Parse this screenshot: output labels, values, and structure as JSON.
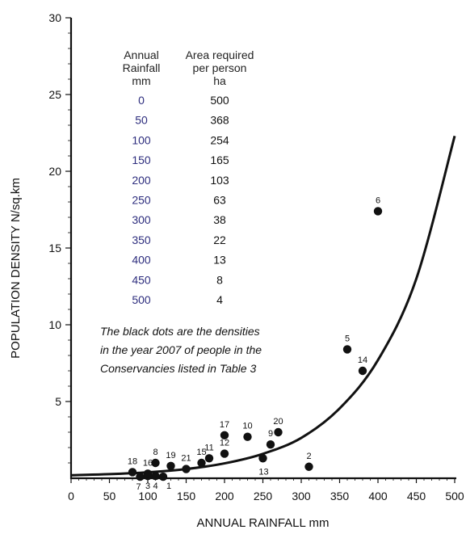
{
  "chart_data": {
    "type": "scatter",
    "xlabel": "ANNUAL RAINFALL mm",
    "ylabel": "POPULATION DENSITY  N/sq.km",
    "xlim": [
      0,
      500
    ],
    "ylim": [
      0,
      30
    ],
    "x_ticks": [
      0,
      50,
      100,
      150,
      200,
      250,
      300,
      350,
      400,
      450,
      500
    ],
    "y_ticks": [
      5,
      10,
      15,
      20,
      25,
      30
    ],
    "grid": false,
    "points": [
      {
        "label": "1",
        "x": 120,
        "y": 0.1
      },
      {
        "label": "2",
        "x": 310,
        "y": 0.75
      },
      {
        "label": "3",
        "x": 100,
        "y": 0.15
      },
      {
        "label": "4",
        "x": 110,
        "y": 0.15
      },
      {
        "label": "5",
        "x": 360,
        "y": 8.4
      },
      {
        "label": "6",
        "x": 400,
        "y": 17.4
      },
      {
        "label": "7",
        "x": 90,
        "y": 0.1
      },
      {
        "label": "8",
        "x": 110,
        "y": 1.0
      },
      {
        "label": "9",
        "x": 260,
        "y": 2.2
      },
      {
        "label": "10",
        "x": 230,
        "y": 2.7
      },
      {
        "label": "11",
        "x": 180,
        "y": 1.3
      },
      {
        "label": "12",
        "x": 200,
        "y": 1.6
      },
      {
        "label": "13",
        "x": 250,
        "y": 1.3
      },
      {
        "label": "14",
        "x": 380,
        "y": 7.0
      },
      {
        "label": "15",
        "x": 170,
        "y": 1.0
      },
      {
        "label": "16",
        "x": 100,
        "y": 0.3
      },
      {
        "label": "17",
        "x": 200,
        "y": 2.8
      },
      {
        "label": "18",
        "x": 80,
        "y": 0.4
      },
      {
        "label": "19",
        "x": 130,
        "y": 0.8
      },
      {
        "label": "20",
        "x": 270,
        "y": 3.0
      },
      {
        "label": "21",
        "x": 150,
        "y": 0.6
      }
    ],
    "curve": {
      "x": [
        0,
        50,
        100,
        150,
        200,
        250,
        300,
        350,
        400,
        450,
        500
      ],
      "y": [
        0.2,
        0.27,
        0.39,
        0.6,
        0.97,
        1.59,
        2.63,
        4.55,
        7.7,
        13.0,
        22.3
      ]
    },
    "table": {
      "header_rainfall": [
        "Annual",
        "Rainfall",
        "mm"
      ],
      "header_area": [
        "Area required",
        "per person",
        "ha"
      ],
      "rows": [
        {
          "rainfall": "0",
          "area": "500"
        },
        {
          "rainfall": "50",
          "area": "368"
        },
        {
          "rainfall": "100",
          "area": "254"
        },
        {
          "rainfall": "150",
          "area": "165"
        },
        {
          "rainfall": "200",
          "area": "103"
        },
        {
          "rainfall": "250",
          "area": "63"
        },
        {
          "rainfall": "300",
          "area": "38"
        },
        {
          "rainfall": "350",
          "area": "22"
        },
        {
          "rainfall": "400",
          "area": "13"
        },
        {
          "rainfall": "450",
          "area": "8"
        },
        {
          "rainfall": "500",
          "area": "4"
        }
      ]
    },
    "annotation": [
      "The black dots are the densities",
      "in the year 2007 of people in the",
      "Conservancies listed in Table 3"
    ],
    "colors": {
      "points": "#111111",
      "curve": "#111111",
      "table_rainfall": "#2e2e7e"
    }
  }
}
